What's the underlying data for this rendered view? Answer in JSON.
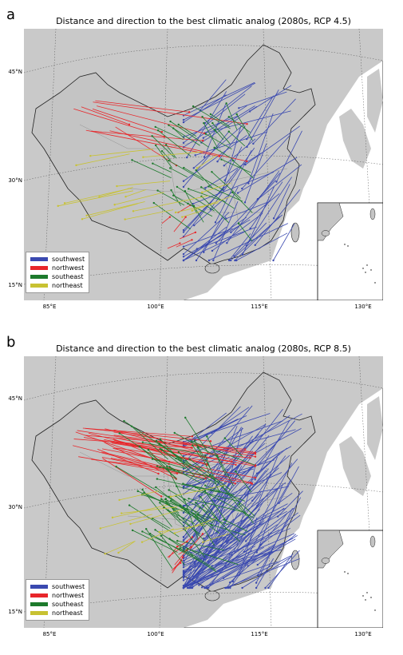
{
  "panels": [
    {
      "letter": "a",
      "title": "Distance and direction to the best climatic analog (2080s, RCP 4.5)",
      "lat_labels": [
        "45°N",
        "30°N",
        "15°N"
      ],
      "lon_labels": [
        "85°E",
        "100°E",
        "115°E",
        "130°E"
      ],
      "legend": [
        "southwest",
        "northwest",
        "southeast",
        "northeast"
      ]
    },
    {
      "letter": "b",
      "title": "Distance and direction to the best climatic analog (2080s, RCP 8.5)",
      "lat_labels": [
        "45°N",
        "30°N",
        "15°N"
      ],
      "lon_labels": [
        "85°E",
        "100°E",
        "115°E",
        "130°E"
      ],
      "legend": [
        "southwest",
        "northwest",
        "southeast",
        "northeast"
      ]
    }
  ],
  "colors": {
    "southwest": "#3a49b0",
    "northwest": "#e8262a",
    "southeast": "#1d7a2c",
    "northeast": "#c8c232",
    "ocean": "#ffffff",
    "land": "#c9c9c9",
    "border": "#222222"
  }
}
